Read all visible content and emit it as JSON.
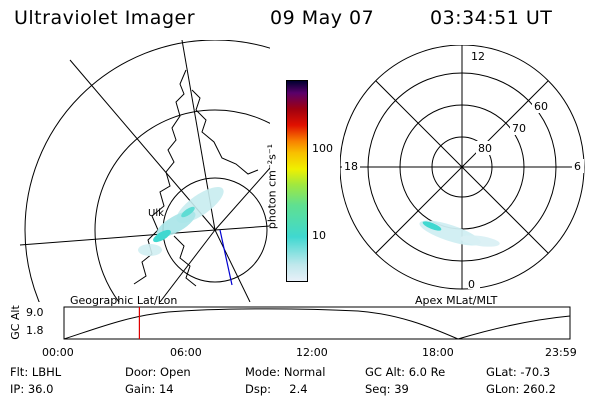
{
  "header": {
    "title": "Ultraviolet Imager",
    "date": "09 May 07",
    "time": "03:34:51 UT"
  },
  "geo_map": {
    "label": "Geographic Lat/Lon",
    "coast_text": "Ulk"
  },
  "polar_plot": {
    "label": "Apex MLat/MLT",
    "mlt_labels": {
      "top": "12",
      "left": "18",
      "right": "6",
      "bottom": "0"
    },
    "lat_labels": [
      "80",
      "70",
      "60"
    ]
  },
  "colorbar": {
    "unit_label": "photon cm⁻²s⁻¹",
    "ticks": [
      "100",
      "10"
    ],
    "scale": "log",
    "colors": [
      "#e8f0f8",
      "#c0e8ec",
      "#40d8d0",
      "#60e090",
      "#a0e840",
      "#f0f000",
      "#f8c000",
      "#f88000",
      "#e01000",
      "#a00010",
      "#5a006a",
      "#000030"
    ]
  },
  "altitude_plot": {
    "ylabel": "GC Alt",
    "yticks": [
      "9.0",
      "1.8"
    ],
    "xticks": [
      "00:00",
      "06:00",
      "12:00",
      "18:00",
      "23:59"
    ],
    "marker_color": "#e00000",
    "marker_time_fraction": 0.149
  },
  "info": {
    "filter": "Flt: LBHL",
    "ip": "IP: 36.0",
    "door": "Door: Open",
    "gain": "Gain: 14",
    "mode": "Mode: Normal",
    "dsp": "Dsp:     2.4",
    "gc_alt": "GC Alt: 6.0 Re",
    "seq": "Seq: 39",
    "glat": "GLat: -70.3",
    "glon": "GLon: 260.2"
  }
}
